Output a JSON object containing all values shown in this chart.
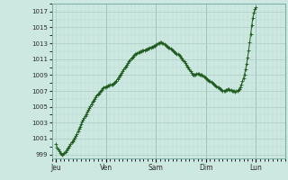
{
  "background_color": "#cce8e0",
  "plot_bg_color": "#cce8e0",
  "grid_major_color": "#aaccc4",
  "grid_minor_color": "#bbddd6",
  "line_color": "#1e5c1e",
  "ylim": [
    998.5,
    1018.0
  ],
  "yticks": [
    999,
    1001,
    1003,
    1005,
    1007,
    1009,
    1011,
    1013,
    1015,
    1017
  ],
  "day_labels": [
    "Jeu",
    "Ven",
    "Sam",
    "Dim",
    "Lun"
  ],
  "day_positions": [
    0,
    48,
    96,
    144,
    192
  ],
  "xlim": [
    -4,
    220
  ],
  "pressure_data": [
    1000.3,
    999.9,
    999.6,
    999.4,
    999.2,
    999.1,
    999.0,
    999.05,
    999.15,
    999.3,
    999.5,
    999.7,
    999.9,
    1000.1,
    1000.3,
    1000.5,
    1000.7,
    1000.9,
    1001.1,
    1001.3,
    1001.6,
    1001.9,
    1002.2,
    1002.5,
    1002.8,
    1003.1,
    1003.35,
    1003.6,
    1003.85,
    1004.1,
    1004.35,
    1004.6,
    1004.85,
    1005.1,
    1005.35,
    1005.6,
    1005.8,
    1006.0,
    1006.2,
    1006.4,
    1006.55,
    1006.7,
    1006.85,
    1007.0,
    1007.15,
    1007.3,
    1007.4,
    1007.5,
    1007.55,
    1007.6,
    1007.65,
    1007.7,
    1007.75,
    1007.8,
    1007.85,
    1007.9,
    1008.0,
    1008.15,
    1008.3,
    1008.5,
    1008.7,
    1008.9,
    1009.1,
    1009.3,
    1009.5,
    1009.7,
    1009.9,
    1010.1,
    1010.3,
    1010.5,
    1010.7,
    1010.9,
    1011.05,
    1011.2,
    1011.35,
    1011.5,
    1011.6,
    1011.7,
    1011.8,
    1011.85,
    1011.9,
    1011.95,
    1012.0,
    1012.05,
    1012.1,
    1012.15,
    1012.2,
    1012.25,
    1012.3,
    1012.35,
    1012.4,
    1012.5,
    1012.55,
    1012.6,
    1012.65,
    1012.7,
    1012.8,
    1012.9,
    1013.0,
    1013.05,
    1013.1,
    1013.1,
    1013.05,
    1013.0,
    1012.9,
    1012.8,
    1012.7,
    1012.6,
    1012.5,
    1012.4,
    1012.3,
    1012.2,
    1012.1,
    1012.0,
    1011.9,
    1011.8,
    1011.7,
    1011.6,
    1011.5,
    1011.4,
    1011.25,
    1011.1,
    1010.9,
    1010.7,
    1010.5,
    1010.3,
    1010.1,
    1009.9,
    1009.7,
    1009.5,
    1009.3,
    1009.1,
    1009.0,
    1009.05,
    1009.1,
    1009.15,
    1009.2,
    1009.15,
    1009.1,
    1009.05,
    1009.0,
    1008.9,
    1008.8,
    1008.7,
    1008.6,
    1008.5,
    1008.4,
    1008.3,
    1008.2,
    1008.1,
    1008.0,
    1007.9,
    1007.8,
    1007.7,
    1007.6,
    1007.5,
    1007.4,
    1007.3,
    1007.2,
    1007.1,
    1007.05,
    1007.0,
    1007.05,
    1007.1,
    1007.15,
    1007.2,
    1007.2,
    1007.15,
    1007.1,
    1007.05,
    1007.0,
    1006.95,
    1006.9,
    1006.95,
    1007.0,
    1007.1,
    1007.25,
    1007.5,
    1007.8,
    1008.2,
    1008.6,
    1009.1,
    1009.7,
    1010.4,
    1011.2,
    1012.1,
    1013.1,
    1014.2,
    1015.3,
    1016.2,
    1016.9,
    1017.3,
    1017.5
  ]
}
